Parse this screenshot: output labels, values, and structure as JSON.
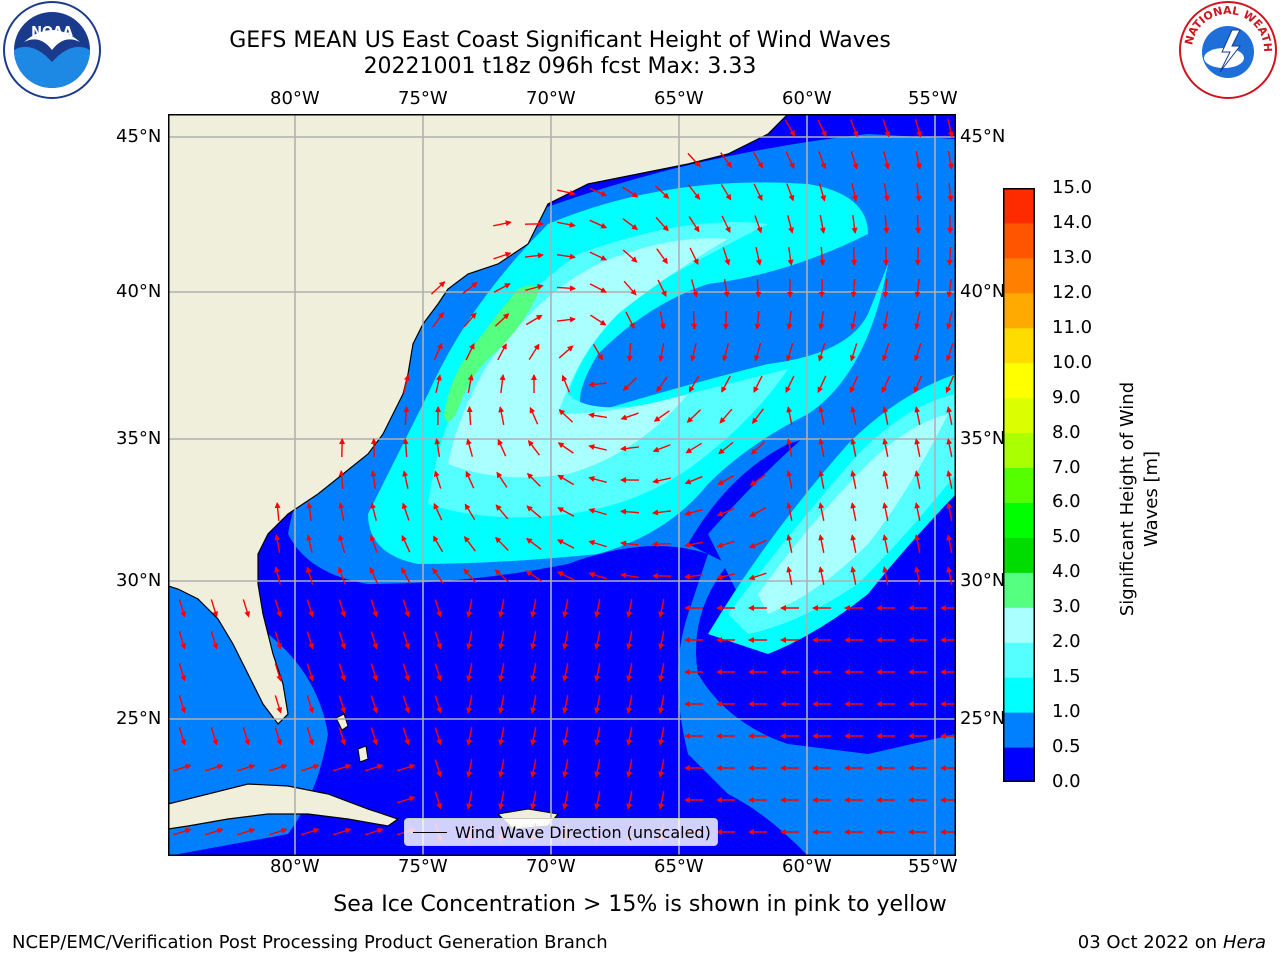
{
  "header": {
    "title_line1": "GEFS MEAN US East Coast Significant Height of Wind Waves",
    "title_line2": "20221001 t18z 096h fcst   Max: 3.33"
  },
  "logos": {
    "left": "noaa-logo",
    "right": "national-weather-service-logo",
    "right_text": "NATIONAL WEATHER SERVICE"
  },
  "map": {
    "lon_ticks": [
      "80°W",
      "75°W",
      "70°W",
      "65°W",
      "60°W",
      "55°W"
    ],
    "lat_ticks": [
      "45°N",
      "40°N",
      "35°N",
      "30°N",
      "25°N"
    ],
    "land_color": "#efefdc",
    "legend_label": "Wind Wave Direction (unscaled)",
    "arrow_color": "#ff0000"
  },
  "colorbar": {
    "label_line1": "Significant Height of Wind",
    "label_line2": "Waves [m]",
    "ticks": [
      "15.0",
      "14.0",
      "13.0",
      "12.0",
      "11.0",
      "10.0",
      "9.0",
      "8.0",
      "7.0",
      "6.0",
      "5.0",
      "4.0",
      "3.0",
      "2.0",
      "1.5",
      "1.0",
      "0.5",
      "0.0"
    ],
    "colors": [
      "#0000ff",
      "#0080ff",
      "#00ffff",
      "#55ffff",
      "#aaffff",
      "#55ff80",
      "#00dc00",
      "#00ff00",
      "#55ff00",
      "#aaff00",
      "#dcff00",
      "#ffff00",
      "#ffdc00",
      "#ffaa00",
      "#ff8000",
      "#ff5500",
      "#ff2b00"
    ]
  },
  "footer": {
    "sea_ice_note": "Sea Ice Concentration > 15% is shown in pink to yellow",
    "credit": "NCEP/EMC/Verification Post Processing Product Generation Branch",
    "date": "03 Oct 2022 on ",
    "host": "Hera"
  }
}
